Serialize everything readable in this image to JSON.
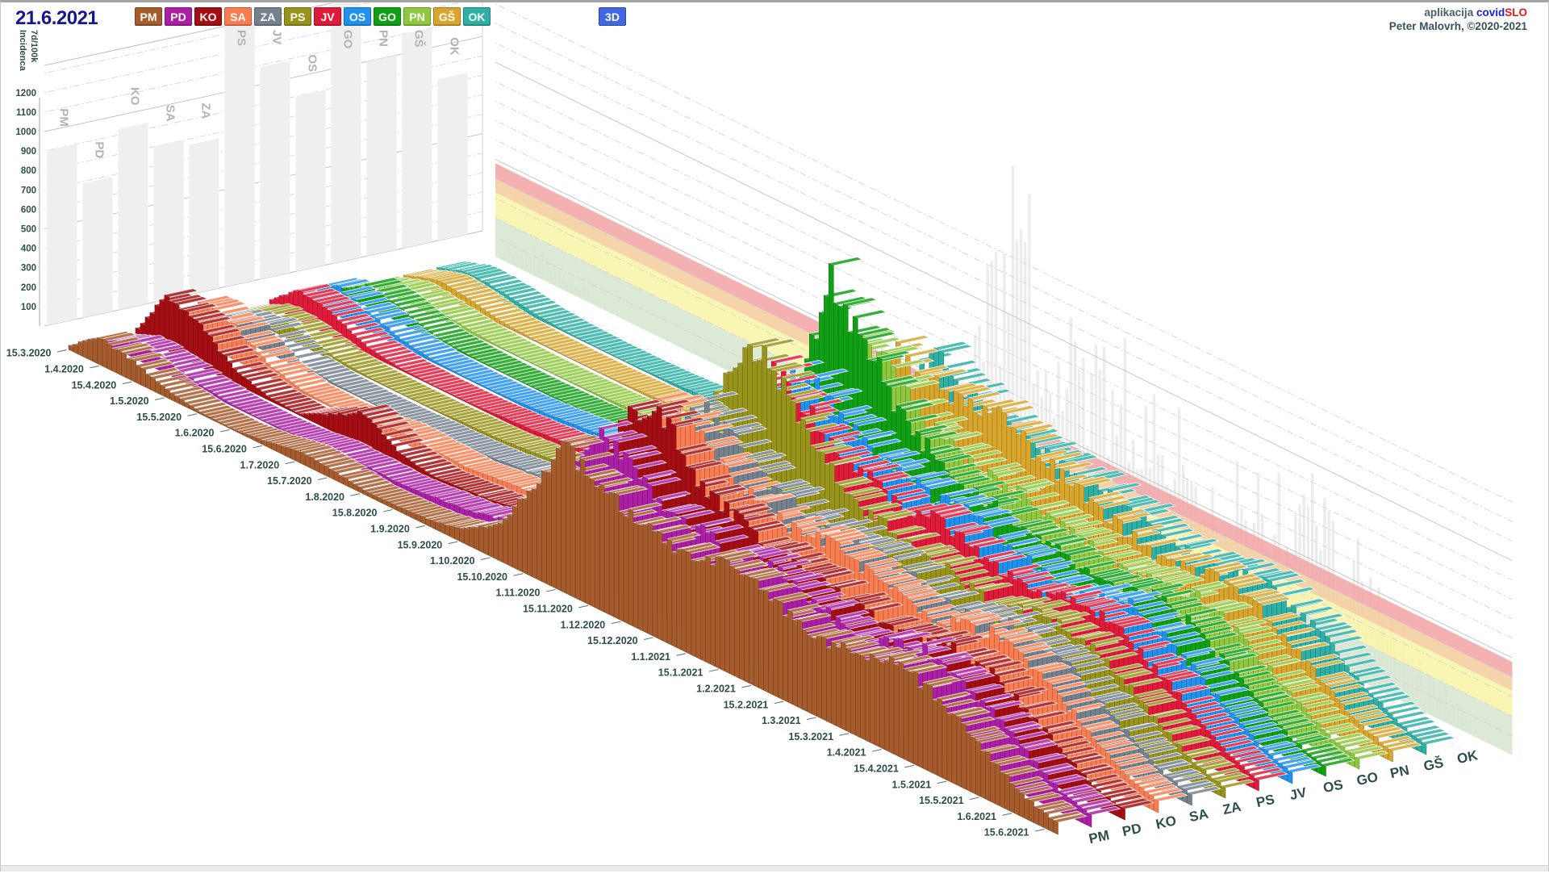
{
  "header": {
    "date_label": "21.6.2021",
    "view_button": "3D",
    "view_button_color": "#4168E1",
    "credits_prefix": "aplikacija",
    "credits_brand_blue": "covid",
    "credits_brand_red": "SLO",
    "credits_author": "Peter Malovrh, ©2020-2021"
  },
  "chart_data": {
    "type": "3d-ridge-bar",
    "y_axis": {
      "label_line1": "7d/100k",
      "label_line2": "Incidenca",
      "min": 0,
      "max": 1340,
      "tick_step": 100,
      "ticks": [
        100,
        200,
        300,
        400,
        500,
        600,
        700,
        800,
        900,
        1000,
        1100,
        1200
      ]
    },
    "time_axis": {
      "tick_labels": [
        "15.3.2020",
        "1.4.2020",
        "15.4.2020",
        "1.5.2020",
        "15.5.2020",
        "1.6.2020",
        "15.6.2020",
        "1.7.2020",
        "15.7.2020",
        "1.8.2020",
        "15.8.2020",
        "1.9.2020",
        "15.9.2020",
        "1.10.2020",
        "15.10.2020",
        "1.11.2020",
        "15.11.2020",
        "1.12.2020",
        "15.12.2020",
        "1.1.2021",
        "15.1.2021",
        "1.2.2021",
        "15.2.2021",
        "1.3.2021",
        "15.3.2021",
        "1.4.2021",
        "15.4.2021",
        "1.5.2021",
        "15.5.2021",
        "1.6.2021",
        "15.6.2021"
      ]
    },
    "regions": [
      "PM",
      "PD",
      "KO",
      "SA",
      "ZA",
      "PS",
      "JV",
      "OS",
      "GO",
      "PN",
      "GŠ",
      "OK"
    ],
    "series": [
      {
        "name": "PM",
        "color": "#A65B2C",
        "values": [
          15,
          140,
          100,
          40,
          10,
          5,
          25,
          60,
          45,
          20,
          25,
          35,
          70,
          170,
          440,
          750,
          640,
          560,
          520,
          480,
          550,
          510,
          450,
          390,
          440,
          480,
          430,
          330,
          215,
          110,
          55
        ]
      },
      {
        "name": "PD",
        "color": "#AC1FA5",
        "values": [
          10,
          80,
          65,
          28,
          8,
          4,
          12,
          35,
          30,
          25,
          40,
          55,
          90,
          190,
          470,
          800,
          700,
          590,
          545,
          500,
          535,
          495,
          440,
          400,
          455,
          495,
          435,
          340,
          225,
          115,
          58
        ]
      },
      {
        "name": "KO",
        "color": "#A40E12",
        "values": [
          20,
          280,
          210,
          75,
          18,
          6,
          90,
          180,
          60,
          25,
          35,
          50,
          85,
          175,
          455,
          850,
          900,
          690,
          590,
          515,
          500,
          465,
          430,
          385,
          435,
          465,
          415,
          318,
          208,
          100,
          50
        ]
      },
      {
        "name": "SA",
        "color": "#F97D50",
        "values": [
          15,
          220,
          175,
          65,
          14,
          6,
          20,
          50,
          40,
          30,
          50,
          65,
          100,
          205,
          520,
          870,
          790,
          635,
          575,
          535,
          555,
          515,
          465,
          415,
          465,
          505,
          445,
          345,
          228,
          112,
          54
        ]
      },
      {
        "name": "ZA",
        "color": "#75828E",
        "values": [
          6,
          100,
          140,
          30,
          8,
          3,
          5,
          15,
          18,
          28,
          45,
          60,
          95,
          195,
          480,
          840,
          750,
          615,
          555,
          505,
          525,
          495,
          445,
          405,
          455,
          485,
          425,
          325,
          212,
          103,
          50
        ]
      },
      {
        "name": "PS",
        "color": "#98941B",
        "values": [
          8,
          90,
          65,
          22,
          6,
          3,
          4,
          12,
          18,
          32,
          50,
          70,
          110,
          235,
          560,
          950,
          1150,
          890,
          690,
          555,
          535,
          505,
          455,
          415,
          465,
          495,
          435,
          335,
          218,
          106,
          52
        ]
      },
      {
        "name": "JV",
        "color": "#E01A39",
        "values": [
          25,
          160,
          110,
          35,
          10,
          5,
          6,
          16,
          28,
          46,
          66,
          86,
          130,
          265,
          600,
          940,
          870,
          715,
          635,
          575,
          585,
          545,
          495,
          445,
          495,
          525,
          455,
          355,
          232,
          115,
          55
        ]
      },
      {
        "name": "OS",
        "color": "#2191EE",
        "values": [
          30,
          150,
          95,
          38,
          12,
          6,
          8,
          18,
          32,
          52,
          72,
          92,
          142,
          285,
          620,
          890,
          790,
          675,
          615,
          565,
          575,
          535,
          485,
          435,
          485,
          515,
          445,
          345,
          226,
          112,
          54
        ]
      },
      {
        "name": "GO",
        "color": "#10A015",
        "values": [
          8,
          110,
          70,
          20,
          6,
          3,
          3,
          8,
          16,
          30,
          46,
          62,
          102,
          245,
          650,
          1290,
          1070,
          815,
          675,
          575,
          565,
          525,
          475,
          425,
          475,
          505,
          435,
          335,
          216,
          104,
          50
        ]
      },
      {
        "name": "PN",
        "color": "#8FC73E",
        "values": [
          4,
          60,
          40,
          14,
          5,
          2,
          3,
          7,
          15,
          27,
          43,
          59,
          96,
          225,
          585,
          1000,
          845,
          695,
          615,
          555,
          555,
          515,
          465,
          415,
          455,
          485,
          425,
          325,
          206,
          98,
          47
        ]
      },
      {
        "name": "GŠ",
        "color": "#D8A62D",
        "values": [
          5,
          70,
          50,
          17,
          5,
          3,
          3,
          8,
          17,
          31,
          49,
          67,
          106,
          232,
          560,
          870,
          795,
          755,
          835,
          695,
          635,
          575,
          505,
          445,
          485,
          515,
          445,
          345,
          222,
          108,
          51
        ]
      },
      {
        "name": "OK",
        "color": "#2EB0A5",
        "values": [
          8,
          65,
          48,
          18,
          6,
          3,
          4,
          10,
          21,
          37,
          56,
          73,
          116,
          242,
          540,
          810,
          730,
          635,
          595,
          555,
          565,
          525,
          475,
          425,
          465,
          495,
          430,
          332,
          212,
          102,
          49
        ]
      }
    ],
    "back_wall_peaks": [
      900,
      690,
      930,
      800,
      770,
      1350,
      1090,
      900,
      1350,
      1000,
      1100,
      830
    ],
    "right_wall_ghost": [
      14,
      120,
      90,
      32,
      9,
      4,
      15,
      35,
      28,
      32,
      48,
      63,
      105,
      220,
      560,
      1050,
      1250,
      950,
      850,
      780,
      880,
      740,
      620,
      545,
      600,
      660,
      580,
      455,
      295,
      145,
      68
    ],
    "right_wall_bands": [
      {
        "from": 0,
        "to": 200,
        "color": "#D5E5CF"
      },
      {
        "from": 200,
        "to": 330,
        "color": "#F7F4A4"
      },
      {
        "from": 330,
        "to": 400,
        "color": "#F5CD9C"
      },
      {
        "from": 400,
        "to": 480,
        "color": "#F2A3A3"
      }
    ],
    "grid": "dashed every 100, solid every 500",
    "legend_position": "top"
  }
}
